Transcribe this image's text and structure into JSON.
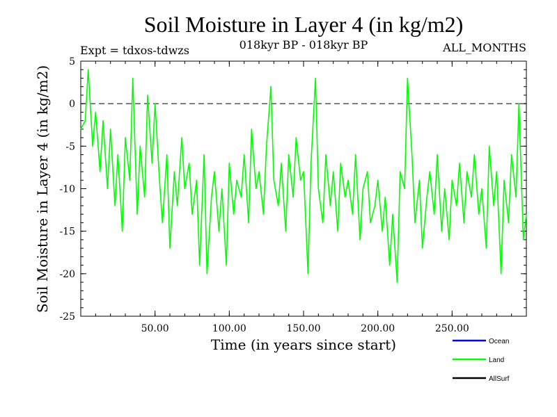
{
  "chart_data": {
    "type": "line",
    "title": "Soil Moisture in Layer 4 (in kg/m2)",
    "subtitle_left": "Expt = tdxos-tdwzs",
    "subtitle_center": "018kyr BP - 018kyr BP",
    "subtitle_right": "ALL_MONTHS",
    "xlabel": "Time (in years since start)",
    "ylabel": "Soil Moisture in Layer 4 (in kg/m2)",
    "xlim": [
      0,
      300
    ],
    "ylim": [
      -25,
      5
    ],
    "x_ticks": [
      50,
      100,
      150,
      200,
      250
    ],
    "x_tick_labels": [
      "50.00",
      "100.00",
      "150.00",
      "200.00",
      "250.00"
    ],
    "y_ticks": [
      5,
      0,
      -5,
      -10,
      -15,
      -20,
      -25
    ],
    "y_tick_labels": [
      "5",
      "0",
      "-5",
      "-10",
      "-15",
      "-20",
      "-25"
    ],
    "zero_line": 0,
    "legend": [
      {
        "name": "Ocean",
        "color": "#0000ff"
      },
      {
        "name": "Land",
        "color": "#00ff00"
      },
      {
        "name": "AllSurf",
        "color": "#000000"
      }
    ],
    "series": [
      {
        "name": "Land",
        "color": "#00ff00",
        "x": [
          0,
          3,
          5,
          8,
          10,
          13,
          15,
          18,
          20,
          23,
          25,
          28,
          30,
          33,
          35,
          38,
          40,
          43,
          45,
          48,
          50,
          53,
          55,
          58,
          60,
          63,
          65,
          68,
          70,
          73,
          75,
          78,
          80,
          83,
          85,
          88,
          90,
          93,
          95,
          98,
          100,
          103,
          105,
          108,
          110,
          113,
          115,
          118,
          120,
          123,
          125,
          128,
          130,
          133,
          135,
          138,
          140,
          143,
          145,
          148,
          150,
          153,
          155,
          158,
          160,
          163,
          165,
          168,
          170,
          173,
          175,
          178,
          180,
          183,
          185,
          188,
          190,
          193,
          195,
          198,
          200,
          203,
          205,
          208,
          210,
          213,
          215,
          218,
          220,
          223,
          225,
          228,
          230,
          233,
          235,
          238,
          240,
          243,
          245,
          248,
          250,
          253,
          255,
          258,
          260,
          263,
          265,
          268,
          270,
          273,
          275,
          278,
          280,
          283,
          285,
          288,
          290,
          293,
          295,
          298,
          300
        ],
        "y": [
          -3,
          -2,
          4,
          -5,
          -1,
          -8,
          -2,
          -10,
          -3,
          -12,
          -6,
          -15,
          -4,
          -9,
          3,
          -13,
          -5,
          -11,
          1,
          -7,
          0,
          -9,
          -14,
          -6,
          -17,
          -8,
          -12,
          -4,
          -10,
          -7,
          -13,
          -9,
          -19,
          -6,
          -20,
          -11,
          -8,
          -15,
          -10,
          -19,
          -7,
          -13,
          -9,
          -11,
          -6,
          -14,
          -3,
          -10,
          -8,
          -13,
          -5,
          2,
          -9,
          -12,
          -7,
          -15,
          -6,
          -11,
          -4,
          -9,
          -8,
          -20,
          -7,
          3,
          -10,
          -14,
          -6,
          -12,
          -8,
          -15,
          -7,
          -11,
          -9,
          -13,
          -6,
          -16,
          -10,
          -8,
          -14,
          -12,
          -9,
          -15,
          -11,
          -19,
          -13,
          -21,
          -8,
          -10,
          3,
          -6,
          -14,
          -9,
          -17,
          -11,
          -8,
          -13,
          -6,
          -15,
          -10,
          -16,
          -9,
          -12,
          -7,
          -14,
          -8,
          -11,
          -6,
          -13,
          -10,
          -17,
          -5,
          -12,
          -8,
          -20,
          -9,
          -14,
          -6,
          -11,
          0,
          -16,
          -13
        ]
      }
    ]
  }
}
